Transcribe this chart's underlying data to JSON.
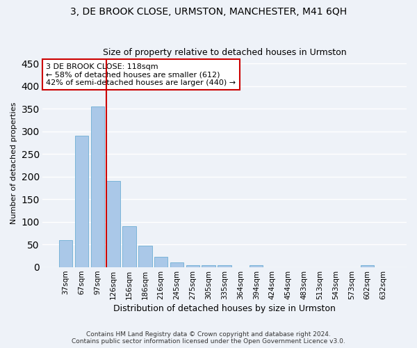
{
  "title": "3, DE BROOK CLOSE, URMSTON, MANCHESTER, M41 6QH",
  "subtitle": "Size of property relative to detached houses in Urmston",
  "xlabel": "Distribution of detached houses by size in Urmston",
  "ylabel": "Number of detached properties",
  "categories": [
    "37sqm",
    "67sqm",
    "97sqm",
    "126sqm",
    "156sqm",
    "186sqm",
    "216sqm",
    "245sqm",
    "275sqm",
    "305sqm",
    "335sqm",
    "364sqm",
    "394sqm",
    "424sqm",
    "454sqm",
    "483sqm",
    "513sqm",
    "543sqm",
    "573sqm",
    "602sqm",
    "632sqm"
  ],
  "values": [
    60,
    290,
    355,
    190,
    90,
    47,
    22,
    10,
    5,
    5,
    5,
    0,
    5,
    0,
    0,
    0,
    0,
    0,
    0,
    5,
    0
  ],
  "bar_color": "#aac8e8",
  "bar_edge_color": "#7ab4d8",
  "vline_color": "#cc0000",
  "vline_pos": 2.575,
  "annotation_text": "3 DE BROOK CLOSE: 118sqm\n← 58% of detached houses are smaller (612)\n42% of semi-detached houses are larger (440) →",
  "annotation_box_color": "#ffffff",
  "annotation_box_edge_color": "#cc0000",
  "ylim": [
    0,
    460
  ],
  "yticks": [
    0,
    50,
    100,
    150,
    200,
    250,
    300,
    350,
    400,
    450
  ],
  "background_color": "#eef2f8",
  "grid_color": "#ffffff",
  "footer_text": "Contains HM Land Registry data © Crown copyright and database right 2024.\nContains public sector information licensed under the Open Government Licence v3.0.",
  "title_fontsize": 10,
  "subtitle_fontsize": 9,
  "xlabel_fontsize": 9,
  "ylabel_fontsize": 8,
  "tick_fontsize": 7.5,
  "annotation_fontsize": 8,
  "footer_fontsize": 6.5
}
